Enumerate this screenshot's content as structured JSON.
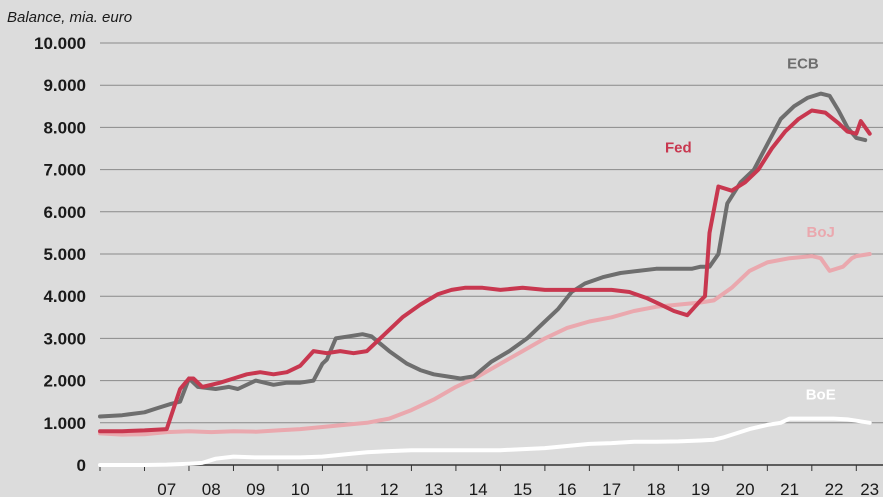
{
  "chart_data": {
    "type": "line",
    "ylabel": "Balance, mia. euro",
    "ylim": [
      0,
      10000
    ],
    "yticks": [
      0,
      1000,
      2000,
      3000,
      4000,
      5000,
      6000,
      7000,
      8000,
      9000,
      10000
    ],
    "ytick_labels": [
      "0",
      "1.000",
      "2.000",
      "3.000",
      "4.000",
      "5.000",
      "6.000",
      "7.000",
      "8.000",
      "9.000",
      "10.000"
    ],
    "xlim": [
      2006.0,
      2023.6
    ],
    "xticks": [
      2007.5,
      2008.5,
      2009.5,
      2010.5,
      2011.5,
      2012.5,
      2013.5,
      2014.5,
      2015.5,
      2016.5,
      2017.5,
      2018.5,
      2019.5,
      2020.5,
      2021.5,
      2022.5,
      2023.3
    ],
    "xtick_labels": [
      "07",
      "08",
      "09",
      "10",
      "11",
      "12",
      "13",
      "14",
      "15",
      "16",
      "17",
      "18",
      "19",
      "20",
      "21",
      "22",
      "23"
    ],
    "grid": "horizontal",
    "legend": "none",
    "series": [
      {
        "name": "ECB",
        "color": "#6e6e6e",
        "label_x": 2021.8,
        "label_y": 9400,
        "x": [
          2006.0,
          2006.5,
          2007.0,
          2007.3,
          2007.6,
          2007.8,
          2008.0,
          2008.2,
          2008.6,
          2008.9,
          2009.1,
          2009.5,
          2009.9,
          2010.2,
          2010.5,
          2010.8,
          2011.0,
          2011.1,
          2011.3,
          2011.6,
          2011.9,
          2012.1,
          2012.5,
          2012.9,
          2013.2,
          2013.5,
          2013.8,
          2014.1,
          2014.4,
          2014.8,
          2015.2,
          2015.6,
          2016.0,
          2016.3,
          2016.6,
          2016.9,
          2017.3,
          2017.7,
          2018.1,
          2018.5,
          2018.9,
          2019.3,
          2019.5,
          2019.7,
          2019.9,
          2020.1,
          2020.4,
          2020.7,
          2021.0,
          2021.3,
          2021.6,
          2021.9,
          2022.2,
          2022.4,
          2022.6,
          2022.8,
          2023.0,
          2023.2
        ],
        "y": [
          1150,
          1180,
          1250,
          1350,
          1450,
          1500,
          2050,
          1850,
          1800,
          1850,
          1800,
          2000,
          1900,
          1950,
          1950,
          2000,
          2400,
          2500,
          3000,
          3050,
          3100,
          3050,
          2700,
          2400,
          2250,
          2150,
          2100,
          2050,
          2100,
          2450,
          2700,
          3000,
          3400,
          3700,
          4100,
          4300,
          4450,
          4550,
          4600,
          4650,
          4650,
          4650,
          4700,
          4700,
          5000,
          6200,
          6700,
          7000,
          7600,
          8200,
          8500,
          8700,
          8800,
          8750,
          8400,
          8000,
          7750,
          7700
        ]
      },
      {
        "name": "Fed",
        "color": "#c8374f",
        "label_x": 2019.0,
        "label_y": 7400,
        "x": [
          2006.0,
          2006.5,
          2007.0,
          2007.5,
          2007.8,
          2008.0,
          2008.1,
          2008.3,
          2008.5,
          2008.7,
          2009.0,
          2009.3,
          2009.6,
          2009.9,
          2010.2,
          2010.5,
          2010.8,
          2011.1,
          2011.4,
          2011.7,
          2012.0,
          2012.4,
          2012.8,
          2013.2,
          2013.6,
          2013.9,
          2014.2,
          2014.6,
          2015.0,
          2015.5,
          2016.0,
          2016.5,
          2017.0,
          2017.5,
          2017.9,
          2018.3,
          2018.6,
          2018.9,
          2019.2,
          2019.5,
          2019.6,
          2019.7,
          2019.9,
          2020.2,
          2020.5,
          2020.8,
          2021.1,
          2021.4,
          2021.7,
          2022.0,
          2022.3,
          2022.6,
          2022.8,
          2023.0,
          2023.1,
          2023.3
        ],
        "y": [
          800,
          800,
          820,
          850,
          1800,
          2050,
          2050,
          1850,
          1900,
          1950,
          2050,
          2150,
          2200,
          2150,
          2200,
          2350,
          2700,
          2650,
          2700,
          2650,
          2700,
          3100,
          3500,
          3800,
          4050,
          4150,
          4200,
          4200,
          4150,
          4200,
          4150,
          4150,
          4150,
          4150,
          4100,
          3950,
          3800,
          3650,
          3550,
          3900,
          4000,
          5500,
          6600,
          6500,
          6700,
          7000,
          7500,
          7900,
          8200,
          8400,
          8350,
          8100,
          7900,
          7850,
          8150,
          7850
        ]
      },
      {
        "name": "BoJ",
        "color": "#eaa8ae",
        "label_x": 2022.2,
        "label_y": 5400,
        "x": [
          2006.0,
          2006.5,
          2007.0,
          2007.5,
          2008.0,
          2008.5,
          2009.0,
          2009.5,
          2010.0,
          2010.5,
          2011.0,
          2011.5,
          2012.0,
          2012.5,
          2013.0,
          2013.5,
          2014.0,
          2014.5,
          2015.0,
          2015.5,
          2016.0,
          2016.5,
          2017.0,
          2017.5,
          2018.0,
          2018.5,
          2019.0,
          2019.5,
          2019.8,
          2020.2,
          2020.6,
          2021.0,
          2021.5,
          2022.0,
          2022.2,
          2022.4,
          2022.7,
          2022.9,
          2023.0,
          2023.3
        ],
        "y": [
          750,
          720,
          730,
          780,
          800,
          780,
          800,
          790,
          820,
          850,
          900,
          950,
          1000,
          1100,
          1300,
          1550,
          1850,
          2100,
          2400,
          2700,
          3000,
          3250,
          3400,
          3500,
          3650,
          3750,
          3800,
          3850,
          3900,
          4200,
          4600,
          4800,
          4900,
          4950,
          4900,
          4600,
          4700,
          4900,
          4950,
          5000
        ]
      },
      {
        "name": "BoE",
        "color": "#ffffff",
        "label_x": 2022.2,
        "label_y": 1550,
        "x": [
          2006.0,
          2006.5,
          2007.0,
          2007.5,
          2008.0,
          2008.3,
          2008.6,
          2009.0,
          2009.5,
          2010.0,
          2010.5,
          2011.0,
          2011.5,
          2012.0,
          2012.5,
          2013.0,
          2014.0,
          2015.0,
          2016.0,
          2016.5,
          2017.0,
          2017.5,
          2018.0,
          2018.5,
          2019.0,
          2019.5,
          2019.8,
          2020.0,
          2020.3,
          2020.6,
          2021.0,
          2021.3,
          2021.5,
          2022.0,
          2022.5,
          2022.8,
          2023.0,
          2023.3
        ],
        "y": [
          0,
          0,
          0,
          10,
          30,
          50,
          150,
          200,
          180,
          180,
          180,
          200,
          250,
          300,
          330,
          350,
          350,
          350,
          400,
          450,
          500,
          520,
          550,
          550,
          560,
          580,
          600,
          650,
          750,
          850,
          950,
          1000,
          1100,
          1100,
          1100,
          1080,
          1050,
          1000
        ]
      }
    ]
  }
}
